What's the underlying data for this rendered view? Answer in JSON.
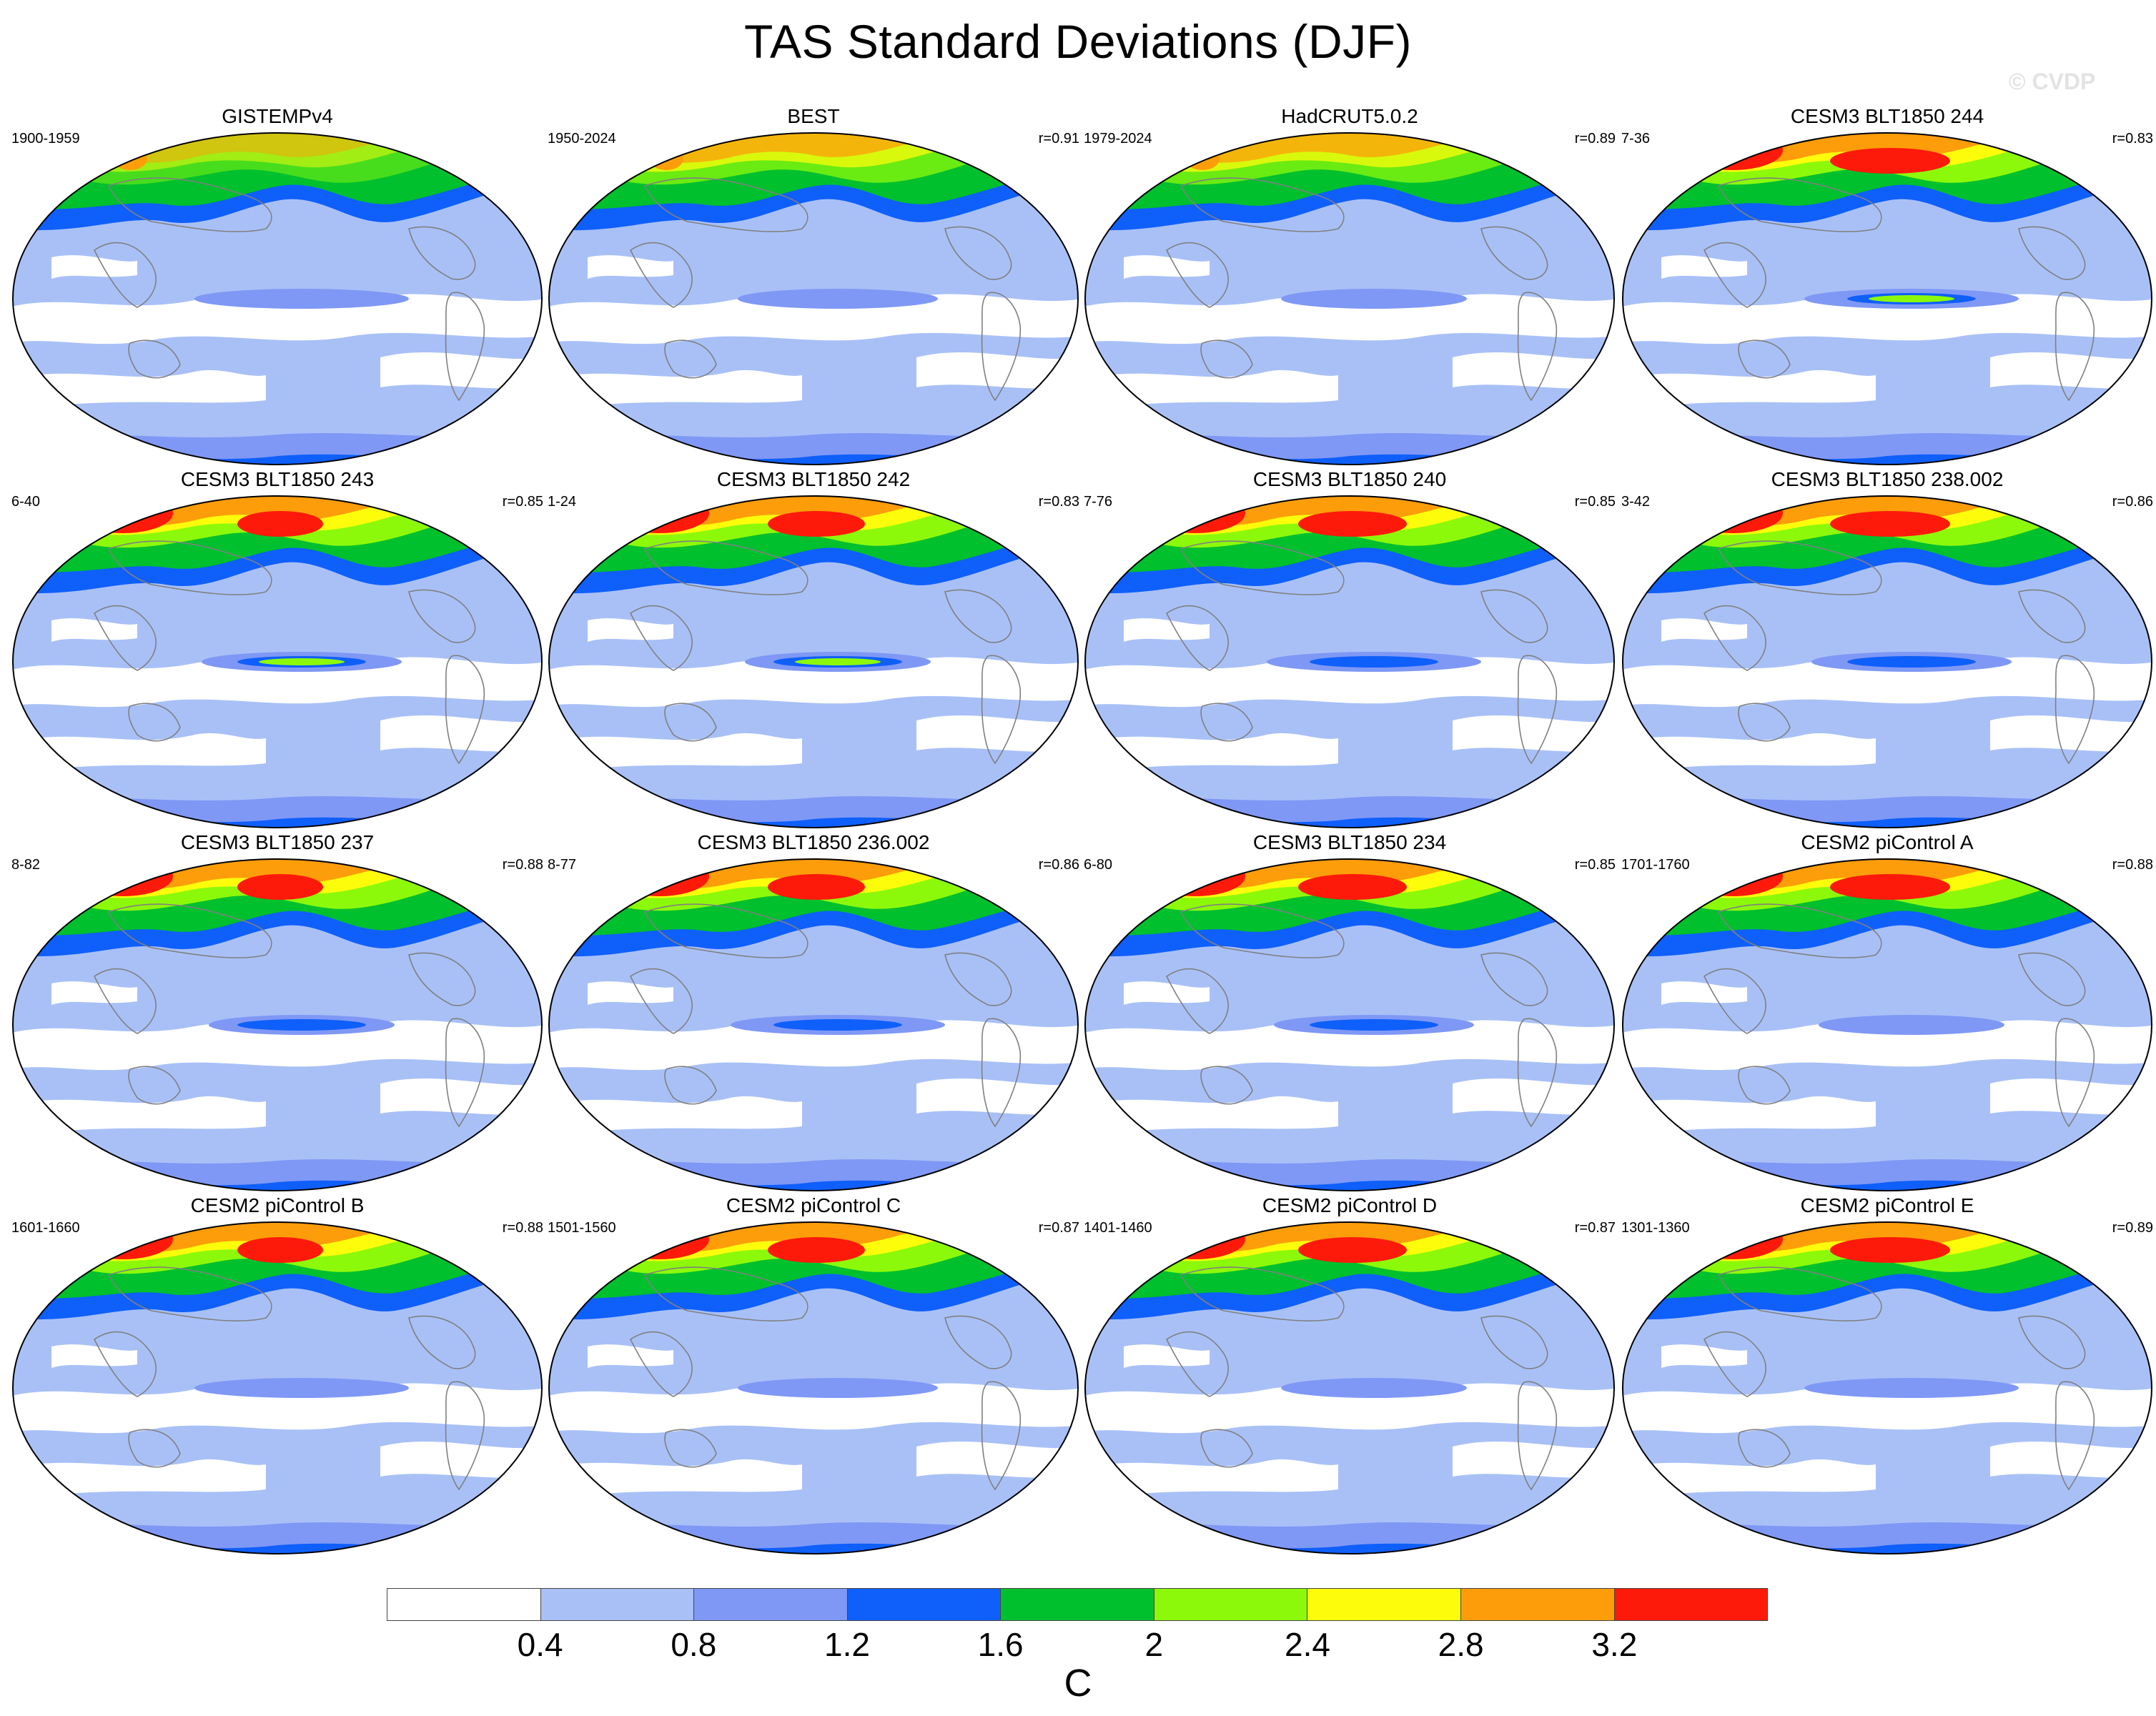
{
  "title": "TAS Standard Deviations (DJF)",
  "watermark": "© CVDP",
  "panels": [
    {
      "name": "GISTEMPv4",
      "years": "1900-1959",
      "r": ""
    },
    {
      "name": "BEST",
      "years": "1950-2024",
      "r": "r=0.91"
    },
    {
      "name": "HadCRUT5.0.2",
      "years": "1979-2024",
      "r": "r=0.89"
    },
    {
      "name": "CESM3 BLT1850 244",
      "years": "7-36",
      "r": "r=0.83"
    },
    {
      "name": "CESM3 BLT1850 243",
      "years": "6-40",
      "r": "r=0.85"
    },
    {
      "name": "CESM3 BLT1850 242",
      "years": "1-24",
      "r": "r=0.83"
    },
    {
      "name": "CESM3 BLT1850 240",
      "years": "7-76",
      "r": "r=0.85"
    },
    {
      "name": "CESM3 BLT1850 238.002",
      "years": "3-42",
      "r": "r=0.86"
    },
    {
      "name": "CESM3 BLT1850 237",
      "years": "8-82",
      "r": "r=0.88"
    },
    {
      "name": "CESM3 BLT1850 236.002",
      "years": "8-77",
      "r": "r=0.86"
    },
    {
      "name": "CESM3 BLT1850 234",
      "years": "6-80",
      "r": "r=0.85"
    },
    {
      "name": "CESM2 piControl A",
      "years": "1701-1760",
      "r": "r=0.88"
    },
    {
      "name": "CESM2 piControl B",
      "years": "1601-1660",
      "r": "r=0.88"
    },
    {
      "name": "CESM2 piControl C",
      "years": "1501-1560",
      "r": "r=0.87"
    },
    {
      "name": "CESM2 piControl D",
      "years": "1401-1460",
      "r": "r=0.87"
    },
    {
      "name": "CESM2 piControl E",
      "years": "1301-1360",
      "r": "r=0.89"
    }
  ],
  "colorbar": {
    "colors": [
      "#ffffff",
      "#a9c0f7",
      "#7f98f5",
      "#0f5ffb",
      "#00c02e",
      "#8df90a",
      "#fdfd0b",
      "#fd9d0a",
      "#fd1a0a"
    ],
    "ticks": [
      "0.4",
      "0.8",
      "1.2",
      "1.6",
      "2",
      "2.4",
      "2.8",
      "3.2"
    ],
    "unit": "C"
  },
  "map_colors": {
    "ocean_low": "#ffffff",
    "ocean_mid": "#a9c0f7",
    "coast_line": "#808080"
  }
}
